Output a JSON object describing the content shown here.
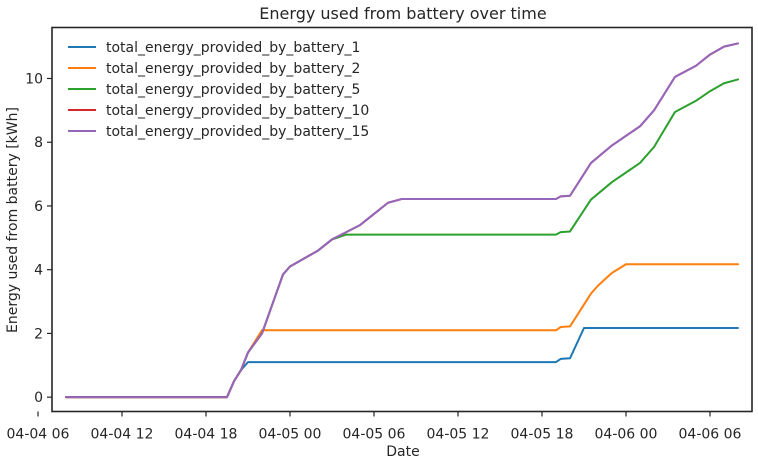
{
  "chart_data": {
    "type": "line",
    "title": "Energy used from battery over time",
    "xlabel": "Date",
    "ylabel": "Energy used from battery [kWh]",
    "x_axis_type": "datetime",
    "xlim": [
      "2024-04-04 07:00",
      "2024-04-06 09:00"
    ],
    "ylim": [
      -0.45,
      11.6
    ],
    "x_ticks": [
      {
        "value": "2024-04-04 06:00",
        "label": "04-04 06"
      },
      {
        "value": "2024-04-04 12:00",
        "label": "04-04 12"
      },
      {
        "value": "2024-04-04 18:00",
        "label": "04-04 18"
      },
      {
        "value": "2024-04-05 00:00",
        "label": "04-05 00"
      },
      {
        "value": "2024-04-05 06:00",
        "label": "04-05 06"
      },
      {
        "value": "2024-04-05 12:00",
        "label": "04-05 12"
      },
      {
        "value": "2024-04-05 18:00",
        "label": "04-05 18"
      },
      {
        "value": "2024-04-06 00:00",
        "label": "04-06 00"
      },
      {
        "value": "2024-04-06 06:00",
        "label": "04-06 06"
      }
    ],
    "y_ticks": [
      {
        "value": 0,
        "label": "0"
      },
      {
        "value": 2,
        "label": "2"
      },
      {
        "value": 4,
        "label": "4"
      },
      {
        "value": 6,
        "label": "6"
      },
      {
        "value": 8,
        "label": "8"
      },
      {
        "value": 10,
        "label": "10"
      }
    ],
    "grid": false,
    "legend_position": "top-left",
    "series": [
      {
        "name": "total_energy_provided_by_battery_1",
        "color": "#1f77b4",
        "points": [
          [
            "2024-04-04 08:00",
            0
          ],
          [
            "2024-04-04 19:30",
            0
          ],
          [
            "2024-04-04 20:00",
            0.5
          ],
          [
            "2024-04-04 20:30",
            0.85
          ],
          [
            "2024-04-04 21:00",
            1.1
          ],
          [
            "2024-04-05 19:00",
            1.1
          ],
          [
            "2024-04-05 19:20",
            1.2
          ],
          [
            "2024-04-05 20:00",
            1.22
          ],
          [
            "2024-04-05 21:00",
            2.17
          ],
          [
            "2024-04-06 08:00",
            2.17
          ]
        ]
      },
      {
        "name": "total_energy_provided_by_battery_2",
        "color": "#ff7f0e",
        "points": [
          [
            "2024-04-04 08:00",
            0
          ],
          [
            "2024-04-04 19:30",
            0
          ],
          [
            "2024-04-04 20:00",
            0.5
          ],
          [
            "2024-04-04 20:30",
            0.85
          ],
          [
            "2024-04-04 21:00",
            1.4
          ],
          [
            "2024-04-04 22:00",
            2.1
          ],
          [
            "2024-04-05 19:00",
            2.1
          ],
          [
            "2024-04-05 19:20",
            2.2
          ],
          [
            "2024-04-05 20:00",
            2.22
          ],
          [
            "2024-04-05 21:30",
            3.25
          ],
          [
            "2024-04-05 22:00",
            3.5
          ],
          [
            "2024-04-05 23:00",
            3.9
          ],
          [
            "2024-04-06 00:00",
            4.17
          ],
          [
            "2024-04-06 08:00",
            4.17
          ]
        ]
      },
      {
        "name": "total_energy_provided_by_battery_5",
        "color": "#2ca02c",
        "points": [
          [
            "2024-04-04 08:00",
            0
          ],
          [
            "2024-04-04 19:30",
            0
          ],
          [
            "2024-04-04 20:00",
            0.5
          ],
          [
            "2024-04-04 20:30",
            0.85
          ],
          [
            "2024-04-04 21:00",
            1.4
          ],
          [
            "2024-04-04 22:00",
            2.0
          ],
          [
            "2024-04-04 23:30",
            3.85
          ],
          [
            "2024-04-05 00:00",
            4.1
          ],
          [
            "2024-04-05 02:00",
            4.6
          ],
          [
            "2024-04-05 03:00",
            4.95
          ],
          [
            "2024-04-05 04:00",
            5.1
          ],
          [
            "2024-04-05 19:00",
            5.1
          ],
          [
            "2024-04-05 19:20",
            5.18
          ],
          [
            "2024-04-05 20:00",
            5.2
          ],
          [
            "2024-04-05 21:30",
            6.2
          ],
          [
            "2024-04-05 23:00",
            6.75
          ],
          [
            "2024-04-06 00:00",
            7.05
          ],
          [
            "2024-04-06 01:00",
            7.35
          ],
          [
            "2024-04-06 02:00",
            7.85
          ],
          [
            "2024-04-06 03:30",
            8.95
          ],
          [
            "2024-04-06 05:00",
            9.3
          ],
          [
            "2024-04-06 06:00",
            9.6
          ],
          [
            "2024-04-06 07:00",
            9.85
          ],
          [
            "2024-04-06 08:00",
            9.97
          ]
        ]
      },
      {
        "name": "total_energy_provided_by_battery_10",
        "color": "#d62728",
        "points": [
          [
            "2024-04-04 08:00",
            0
          ],
          [
            "2024-04-04 19:30",
            0
          ],
          [
            "2024-04-04 20:00",
            0.5
          ],
          [
            "2024-04-04 20:30",
            0.85
          ],
          [
            "2024-04-04 21:00",
            1.4
          ],
          [
            "2024-04-04 22:00",
            2.0
          ],
          [
            "2024-04-04 23:30",
            3.85
          ],
          [
            "2024-04-05 00:00",
            4.1
          ],
          [
            "2024-04-05 02:00",
            4.6
          ],
          [
            "2024-04-05 03:00",
            4.95
          ],
          [
            "2024-04-05 05:00",
            5.4
          ],
          [
            "2024-04-05 06:00",
            5.75
          ],
          [
            "2024-04-05 07:00",
            6.1
          ],
          [
            "2024-04-05 08:00",
            6.22
          ],
          [
            "2024-04-05 19:00",
            6.22
          ],
          [
            "2024-04-05 19:20",
            6.3
          ],
          [
            "2024-04-05 20:00",
            6.32
          ],
          [
            "2024-04-05 21:30",
            7.35
          ],
          [
            "2024-04-05 23:00",
            7.9
          ],
          [
            "2024-04-06 00:00",
            8.2
          ],
          [
            "2024-04-06 01:00",
            8.5
          ],
          [
            "2024-04-06 02:00",
            9.0
          ],
          [
            "2024-04-06 03:30",
            10.05
          ],
          [
            "2024-04-06 05:00",
            10.4
          ],
          [
            "2024-04-06 06:00",
            10.75
          ],
          [
            "2024-04-06 07:00",
            11.0
          ],
          [
            "2024-04-06 08:00",
            11.1
          ]
        ]
      },
      {
        "name": "total_energy_provided_by_battery_15",
        "color": "#9467bd",
        "points": [
          [
            "2024-04-04 08:00",
            0
          ],
          [
            "2024-04-04 19:30",
            0
          ],
          [
            "2024-04-04 20:00",
            0.5
          ],
          [
            "2024-04-04 20:30",
            0.85
          ],
          [
            "2024-04-04 21:00",
            1.4
          ],
          [
            "2024-04-04 22:00",
            2.0
          ],
          [
            "2024-04-04 23:30",
            3.85
          ],
          [
            "2024-04-05 00:00",
            4.1
          ],
          [
            "2024-04-05 02:00",
            4.6
          ],
          [
            "2024-04-05 03:00",
            4.95
          ],
          [
            "2024-04-05 05:00",
            5.4
          ],
          [
            "2024-04-05 06:00",
            5.75
          ],
          [
            "2024-04-05 07:00",
            6.1
          ],
          [
            "2024-04-05 08:00",
            6.22
          ],
          [
            "2024-04-05 19:00",
            6.22
          ],
          [
            "2024-04-05 19:20",
            6.3
          ],
          [
            "2024-04-05 20:00",
            6.32
          ],
          [
            "2024-04-05 21:30",
            7.35
          ],
          [
            "2024-04-05 23:00",
            7.9
          ],
          [
            "2024-04-06 00:00",
            8.2
          ],
          [
            "2024-04-06 01:00",
            8.5
          ],
          [
            "2024-04-06 02:00",
            9.0
          ],
          [
            "2024-04-06 03:30",
            10.05
          ],
          [
            "2024-04-06 05:00",
            10.4
          ],
          [
            "2024-04-06 06:00",
            10.75
          ],
          [
            "2024-04-06 07:00",
            11.0
          ],
          [
            "2024-04-06 08:00",
            11.1
          ]
        ]
      }
    ]
  }
}
